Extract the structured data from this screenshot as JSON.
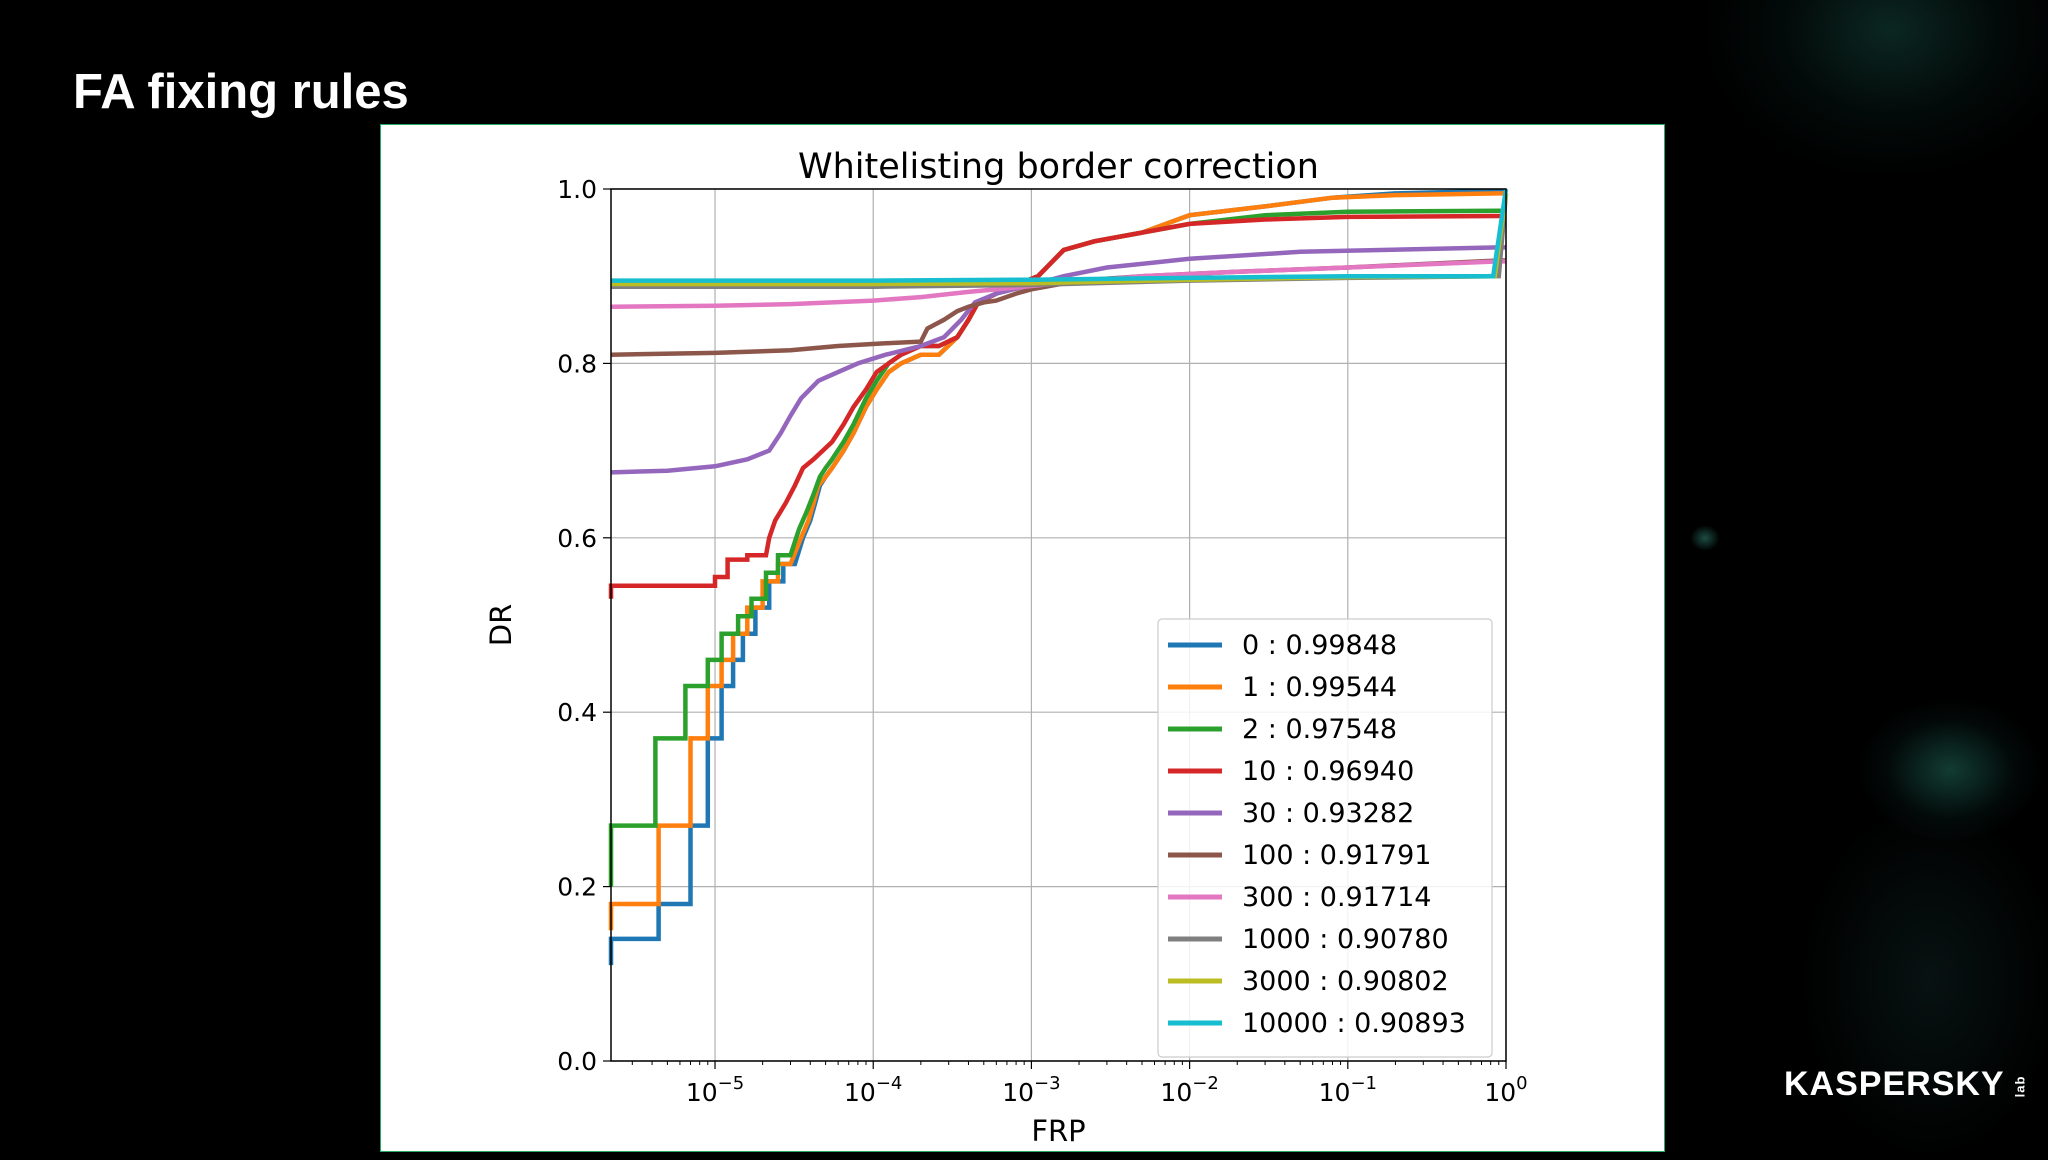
{
  "slide": {
    "title": "FA fixing rules"
  },
  "brand": {
    "logo_text": "KASPERSKY",
    "logo_sub": "lab"
  },
  "chart_data": {
    "type": "line",
    "title": "Whitelisting border correction",
    "xlabel": "FRP",
    "ylabel": "DR",
    "xscale": "log",
    "xlim": [
      2.2e-06,
      1.0
    ],
    "ylim": [
      0.0,
      1.0
    ],
    "grid": true,
    "legend_position": "lower-right",
    "x_ticks": [
      {
        "value": 1e-05,
        "base": "10",
        "exp": "−5"
      },
      {
        "value": 0.0001,
        "base": "10",
        "exp": "−4"
      },
      {
        "value": 0.001,
        "base": "10",
        "exp": "−3"
      },
      {
        "value": 0.01,
        "base": "10",
        "exp": "−2"
      },
      {
        "value": 0.1,
        "base": "10",
        "exp": "−1"
      },
      {
        "value": 1,
        "base": "10",
        "exp": "0"
      }
    ],
    "y_ticks": [
      {
        "value": 0.0,
        "label": "0.0"
      },
      {
        "value": 0.2,
        "label": "0.2"
      },
      {
        "value": 0.4,
        "label": "0.4"
      },
      {
        "value": 0.6,
        "label": "0.6"
      },
      {
        "value": 0.8,
        "label": "0.8"
      },
      {
        "value": 1.0,
        "label": "1.0"
      }
    ],
    "series": [
      {
        "name": "0 : 0.99848",
        "color": "#1f77b4",
        "points": [
          [
            2.2e-06,
            0.11
          ],
          [
            2.2e-06,
            0.14
          ],
          [
            4.4e-06,
            0.14
          ],
          [
            4.4e-06,
            0.18
          ],
          [
            7e-06,
            0.18
          ],
          [
            7e-06,
            0.27
          ],
          [
            9e-06,
            0.27
          ],
          [
            9e-06,
            0.37
          ],
          [
            1.1e-05,
            0.37
          ],
          [
            1.1e-05,
            0.43
          ],
          [
            1.3e-05,
            0.43
          ],
          [
            1.3e-05,
            0.46
          ],
          [
            1.5e-05,
            0.46
          ],
          [
            1.5e-05,
            0.49
          ],
          [
            1.8e-05,
            0.49
          ],
          [
            1.8e-05,
            0.52
          ],
          [
            2.2e-05,
            0.52
          ],
          [
            2.2e-05,
            0.55
          ],
          [
            2.7e-05,
            0.55
          ],
          [
            2.7e-05,
            0.57
          ],
          [
            3.2e-05,
            0.57
          ],
          [
            3.6e-05,
            0.6
          ],
          [
            4e-05,
            0.62
          ],
          [
            4.3e-05,
            0.64
          ],
          [
            4.6e-05,
            0.66
          ],
          [
            5e-05,
            0.67
          ],
          [
            5.5e-05,
            0.68
          ],
          [
            6.5e-05,
            0.7
          ],
          [
            7.5e-05,
            0.72
          ],
          [
            9e-05,
            0.75
          ],
          [
            0.000105,
            0.77
          ],
          [
            0.000125,
            0.79
          ],
          [
            0.00015,
            0.8
          ],
          [
            0.0002,
            0.81
          ],
          [
            0.00026,
            0.81
          ],
          [
            0.00034,
            0.83
          ],
          [
            0.0004,
            0.85
          ],
          [
            0.00046,
            0.87
          ],
          [
            0.0006,
            0.88
          ],
          [
            0.0008,
            0.89
          ],
          [
            0.0011,
            0.9
          ],
          [
            0.0016,
            0.93
          ],
          [
            0.0025,
            0.94
          ],
          [
            0.005,
            0.95
          ],
          [
            0.01,
            0.97
          ],
          [
            0.03,
            0.98
          ],
          [
            0.08,
            0.99
          ],
          [
            0.2,
            0.995
          ],
          [
            0.9,
            0.998
          ],
          [
            1.0,
            0.998
          ]
        ]
      },
      {
        "name": "1 : 0.99544",
        "color": "#ff7f0e",
        "points": [
          [
            2.2e-06,
            0.15
          ],
          [
            2.2e-06,
            0.18
          ],
          [
            4.4e-06,
            0.18
          ],
          [
            4.4e-06,
            0.27
          ],
          [
            7e-06,
            0.27
          ],
          [
            7e-06,
            0.37
          ],
          [
            9e-06,
            0.37
          ],
          [
            9e-06,
            0.43
          ],
          [
            1.1e-05,
            0.43
          ],
          [
            1.1e-05,
            0.46
          ],
          [
            1.3e-05,
            0.46
          ],
          [
            1.3e-05,
            0.49
          ],
          [
            1.6e-05,
            0.49
          ],
          [
            1.6e-05,
            0.52
          ],
          [
            2e-05,
            0.52
          ],
          [
            2e-05,
            0.55
          ],
          [
            2.5e-05,
            0.55
          ],
          [
            2.5e-05,
            0.57
          ],
          [
            3e-05,
            0.57
          ],
          [
            3.5e-05,
            0.6
          ],
          [
            3.9e-05,
            0.62
          ],
          [
            4.2e-05,
            0.64
          ],
          [
            4.5e-05,
            0.66
          ],
          [
            5e-05,
            0.67
          ],
          [
            5.5e-05,
            0.68
          ],
          [
            6.5e-05,
            0.7
          ],
          [
            7.5e-05,
            0.72
          ],
          [
            9e-05,
            0.75
          ],
          [
            0.000105,
            0.77
          ],
          [
            0.000125,
            0.79
          ],
          [
            0.00015,
            0.8
          ],
          [
            0.0002,
            0.81
          ],
          [
            0.00026,
            0.81
          ],
          [
            0.00034,
            0.83
          ],
          [
            0.0004,
            0.85
          ],
          [
            0.00046,
            0.87
          ],
          [
            0.0006,
            0.88
          ],
          [
            0.0008,
            0.89
          ],
          [
            0.0011,
            0.9
          ],
          [
            0.0016,
            0.93
          ],
          [
            0.0025,
            0.94
          ],
          [
            0.005,
            0.95
          ],
          [
            0.01,
            0.97
          ],
          [
            0.03,
            0.98
          ],
          [
            0.08,
            0.99
          ],
          [
            0.2,
            0.993
          ],
          [
            0.9,
            0.995
          ],
          [
            1.0,
            0.995
          ]
        ]
      },
      {
        "name": "2 : 0.97548",
        "color": "#2ca02c",
        "points": [
          [
            2.2e-06,
            0.2
          ],
          [
            2.2e-06,
            0.27
          ],
          [
            4.2e-06,
            0.27
          ],
          [
            4.2e-06,
            0.37
          ],
          [
            6.5e-06,
            0.37
          ],
          [
            6.5e-06,
            0.43
          ],
          [
            9e-06,
            0.43
          ],
          [
            9e-06,
            0.46
          ],
          [
            1.1e-05,
            0.46
          ],
          [
            1.1e-05,
            0.49
          ],
          [
            1.4e-05,
            0.49
          ],
          [
            1.4e-05,
            0.51
          ],
          [
            1.7e-05,
            0.51
          ],
          [
            1.7e-05,
            0.53
          ],
          [
            2.1e-05,
            0.53
          ],
          [
            2.1e-05,
            0.56
          ],
          [
            2.5e-05,
            0.56
          ],
          [
            2.5e-05,
            0.58
          ],
          [
            3e-05,
            0.58
          ],
          [
            3.4e-05,
            0.61
          ],
          [
            3.8e-05,
            0.63
          ],
          [
            4.2e-05,
            0.65
          ],
          [
            4.6e-05,
            0.67
          ],
          [
            5e-05,
            0.68
          ],
          [
            5.5e-05,
            0.69
          ],
          [
            6.5e-05,
            0.71
          ],
          [
            7.5e-05,
            0.73
          ],
          [
            9e-05,
            0.76
          ],
          [
            0.000105,
            0.78
          ],
          [
            0.000125,
            0.8
          ],
          [
            0.00015,
            0.81
          ],
          [
            0.0002,
            0.82
          ],
          [
            0.00026,
            0.82
          ],
          [
            0.00034,
            0.83
          ],
          [
            0.0004,
            0.85
          ],
          [
            0.00046,
            0.87
          ],
          [
            0.0006,
            0.88
          ],
          [
            0.0008,
            0.89
          ],
          [
            0.0011,
            0.9
          ],
          [
            0.0016,
            0.93
          ],
          [
            0.0025,
            0.94
          ],
          [
            0.005,
            0.95
          ],
          [
            0.01,
            0.96
          ],
          [
            0.03,
            0.97
          ],
          [
            0.1,
            0.974
          ],
          [
            0.9,
            0.975
          ],
          [
            1.0,
            0.975
          ]
        ]
      },
      {
        "name": "10 : 0.96940",
        "color": "#d62728",
        "points": [
          [
            2.2e-06,
            0.53
          ],
          [
            2.2e-06,
            0.545
          ],
          [
            8e-06,
            0.545
          ],
          [
            1e-05,
            0.545
          ],
          [
            1e-05,
            0.555
          ],
          [
            1.2e-05,
            0.555
          ],
          [
            1.2e-05,
            0.575
          ],
          [
            1.6e-05,
            0.575
          ],
          [
            1.6e-05,
            0.58
          ],
          [
            2.1e-05,
            0.58
          ],
          [
            2.2e-05,
            0.6
          ],
          [
            2.4e-05,
            0.62
          ],
          [
            2.8e-05,
            0.64
          ],
          [
            3.2e-05,
            0.66
          ],
          [
            3.6e-05,
            0.68
          ],
          [
            4.2e-05,
            0.69
          ],
          [
            4.8e-05,
            0.7
          ],
          [
            5.5e-05,
            0.71
          ],
          [
            6.5e-05,
            0.73
          ],
          [
            7.5e-05,
            0.75
          ],
          [
            9e-05,
            0.77
          ],
          [
            0.000105,
            0.79
          ],
          [
            0.000125,
            0.8
          ],
          [
            0.00015,
            0.81
          ],
          [
            0.0002,
            0.82
          ],
          [
            0.00026,
            0.82
          ],
          [
            0.00034,
            0.83
          ],
          [
            0.0004,
            0.85
          ],
          [
            0.00046,
            0.87
          ],
          [
            0.0006,
            0.88
          ],
          [
            0.0008,
            0.89
          ],
          [
            0.0011,
            0.9
          ],
          [
            0.0016,
            0.93
          ],
          [
            0.0025,
            0.94
          ],
          [
            0.005,
            0.95
          ],
          [
            0.01,
            0.96
          ],
          [
            0.03,
            0.965
          ],
          [
            0.1,
            0.968
          ],
          [
            0.9,
            0.969
          ],
          [
            1.0,
            0.969
          ]
        ]
      },
      {
        "name": "30 : 0.93282",
        "color": "#9467bd",
        "points": [
          [
            2.2e-06,
            0.675
          ],
          [
            5e-06,
            0.677
          ],
          [
            1e-05,
            0.682
          ],
          [
            1.6e-05,
            0.69
          ],
          [
            2.2e-05,
            0.7
          ],
          [
            2.6e-05,
            0.72
          ],
          [
            3e-05,
            0.74
          ],
          [
            3.5e-05,
            0.76
          ],
          [
            4.5e-05,
            0.78
          ],
          [
            6e-05,
            0.79
          ],
          [
            8e-05,
            0.8
          ],
          [
            0.00012,
            0.81
          ],
          [
            0.0002,
            0.82
          ],
          [
            0.00028,
            0.83
          ],
          [
            0.00036,
            0.85
          ],
          [
            0.00044,
            0.87
          ],
          [
            0.0006,
            0.88
          ],
          [
            0.001,
            0.89
          ],
          [
            0.0016,
            0.9
          ],
          [
            0.003,
            0.91
          ],
          [
            0.01,
            0.92
          ],
          [
            0.05,
            0.928
          ],
          [
            0.9,
            0.933
          ],
          [
            1.0,
            0.933
          ]
        ]
      },
      {
        "name": "100 : 0.91791",
        "color": "#8c564b",
        "points": [
          [
            2.2e-06,
            0.81
          ],
          [
            1e-05,
            0.812
          ],
          [
            3e-05,
            0.815
          ],
          [
            6e-05,
            0.82
          ],
          [
            0.00012,
            0.823
          ],
          [
            0.0002,
            0.825
          ],
          [
            0.00022,
            0.84
          ],
          [
            0.00028,
            0.85
          ],
          [
            0.00034,
            0.86
          ],
          [
            0.0004,
            0.865
          ],
          [
            0.0005,
            0.87
          ],
          [
            0.0006,
            0.872
          ],
          [
            0.0008,
            0.88
          ],
          [
            0.001,
            0.885
          ],
          [
            0.002,
            0.895
          ],
          [
            0.005,
            0.9
          ],
          [
            0.02,
            0.905
          ],
          [
            0.1,
            0.91
          ],
          [
            0.9,
            0.918
          ],
          [
            1.0,
            0.918
          ]
        ]
      },
      {
        "name": "300 : 0.91714",
        "color": "#e377c2",
        "points": [
          [
            2.2e-06,
            0.865
          ],
          [
            1e-05,
            0.866
          ],
          [
            3e-05,
            0.868
          ],
          [
            0.0001,
            0.872
          ],
          [
            0.0002,
            0.876
          ],
          [
            0.0004,
            0.882
          ],
          [
            0.0008,
            0.887
          ],
          [
            0.0015,
            0.892
          ],
          [
            0.005,
            0.9
          ],
          [
            0.02,
            0.905
          ],
          [
            0.1,
            0.91
          ],
          [
            0.9,
            0.917
          ],
          [
            1.0,
            0.917
          ]
        ]
      },
      {
        "name": "1000 : 0.90780",
        "color": "#7f7f7f",
        "points": [
          [
            2.2e-06,
            0.888
          ],
          [
            0.0001,
            0.888
          ],
          [
            0.001,
            0.89
          ],
          [
            0.01,
            0.895
          ],
          [
            0.1,
            0.898
          ],
          [
            0.9,
            0.9
          ],
          [
            1.0,
            0.995
          ]
        ]
      },
      {
        "name": "3000 : 0.90802",
        "color": "#bcbd22",
        "points": [
          [
            2.2e-06,
            0.891
          ],
          [
            0.0001,
            0.891
          ],
          [
            0.001,
            0.892
          ],
          [
            0.01,
            0.896
          ],
          [
            0.1,
            0.899
          ],
          [
            0.85,
            0.9
          ],
          [
            1.0,
            0.995
          ]
        ]
      },
      {
        "name": "10000 : 0.90893",
        "color": "#17becf",
        "points": [
          [
            2.2e-06,
            0.895
          ],
          [
            0.0001,
            0.895
          ],
          [
            0.001,
            0.896
          ],
          [
            0.01,
            0.898
          ],
          [
            0.1,
            0.9
          ],
          [
            0.83,
            0.9
          ],
          [
            1.0,
            1.0
          ]
        ]
      }
    ]
  }
}
